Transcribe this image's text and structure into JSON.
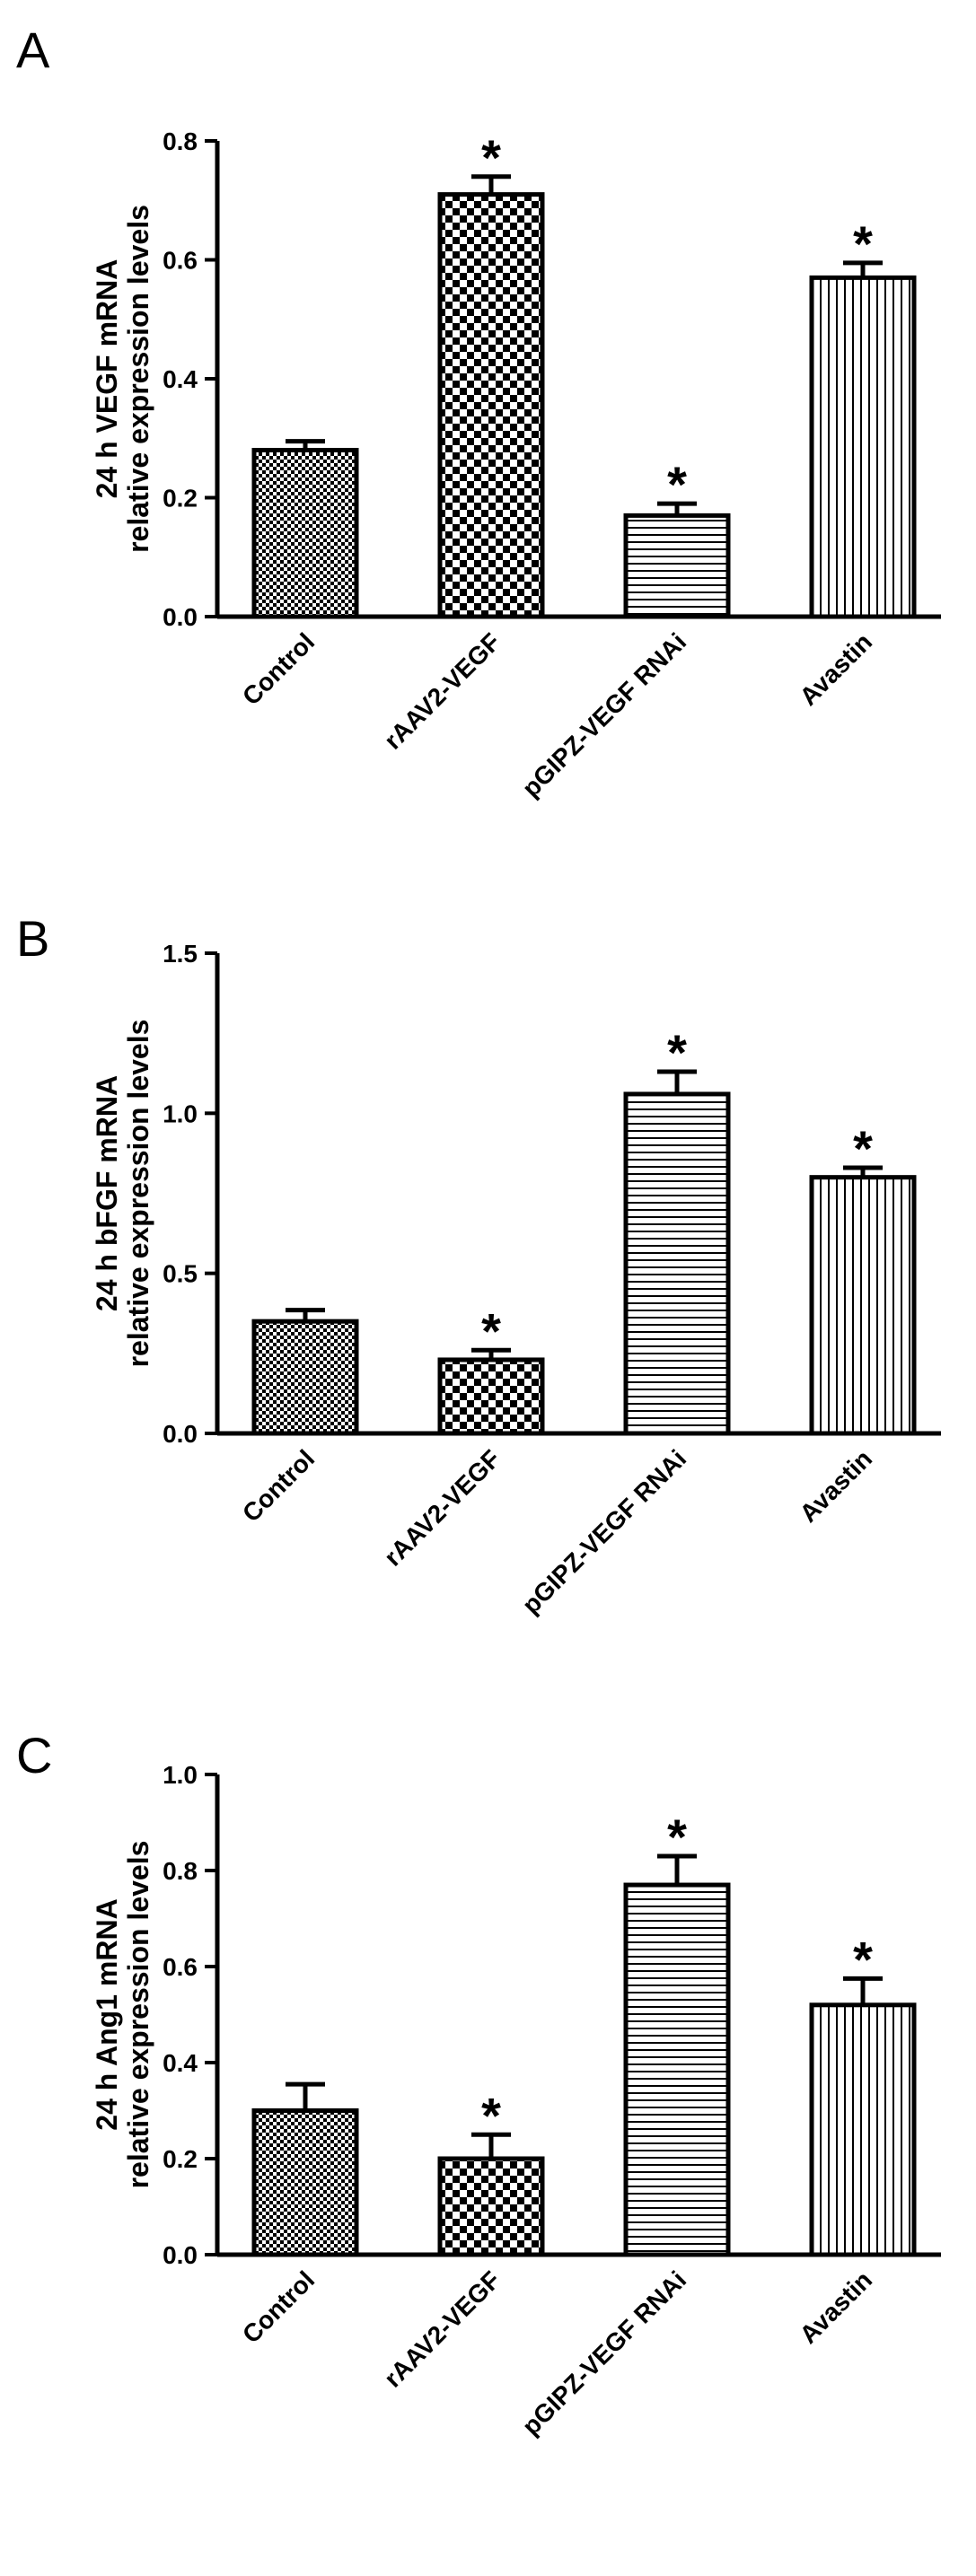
{
  "chart_data": [
    {
      "type": "bar",
      "panel_label": "A",
      "ylabel": [
        "24 h VEGF mRNA",
        "relative expression levels"
      ],
      "categories": [
        "Control",
        "rAAV2-VEGF",
        "pGIPZ-VEGF RNAi",
        "Avastin"
      ],
      "patterns": [
        "fine-check",
        "coarse-check",
        "horizontal-lines",
        "vertical-lines"
      ],
      "values": [
        0.28,
        0.71,
        0.17,
        0.57
      ],
      "errors": [
        0.015,
        0.03,
        0.02,
        0.025
      ],
      "significant": [
        false,
        true,
        true,
        true
      ],
      "significance_marker": "*",
      "ylim": [
        0,
        0.8
      ],
      "yticks": [
        "0.0",
        "0.2",
        "0.4",
        "0.6",
        "0.8"
      ]
    },
    {
      "type": "bar",
      "panel_label": "B",
      "ylabel": [
        "24 h bFGF mRNA",
        "relative expression levels"
      ],
      "categories": [
        "Control",
        "rAAV2-VEGF",
        "pGIPZ-VEGF RNAi",
        "Avastin"
      ],
      "patterns": [
        "fine-check",
        "coarse-check",
        "horizontal-lines",
        "vertical-lines"
      ],
      "values": [
        0.35,
        0.23,
        1.06,
        0.8
      ],
      "errors": [
        0.035,
        0.03,
        0.07,
        0.03
      ],
      "significant": [
        false,
        true,
        true,
        true
      ],
      "significance_marker": "*",
      "ylim": [
        0,
        1.5
      ],
      "yticks": [
        "0.0",
        "0.5",
        "1.0",
        "1.5"
      ]
    },
    {
      "type": "bar",
      "panel_label": "C",
      "ylabel": [
        "24 h  Ang1 mRNA",
        "relative expression levels"
      ],
      "categories": [
        "Control",
        "rAAV2-VEGF",
        "pGIPZ-VEGF RNAi",
        "Avastin"
      ],
      "patterns": [
        "fine-check",
        "coarse-check",
        "horizontal-lines",
        "vertical-lines"
      ],
      "values": [
        0.3,
        0.2,
        0.77,
        0.52
      ],
      "errors": [
        0.055,
        0.05,
        0.06,
        0.055
      ],
      "significant": [
        false,
        true,
        true,
        true
      ],
      "significance_marker": "*",
      "ylim": [
        0,
        1.0
      ],
      "yticks": [
        "0.0",
        "0.2",
        "0.4",
        "0.6",
        "0.8",
        "1.0"
      ]
    }
  ]
}
